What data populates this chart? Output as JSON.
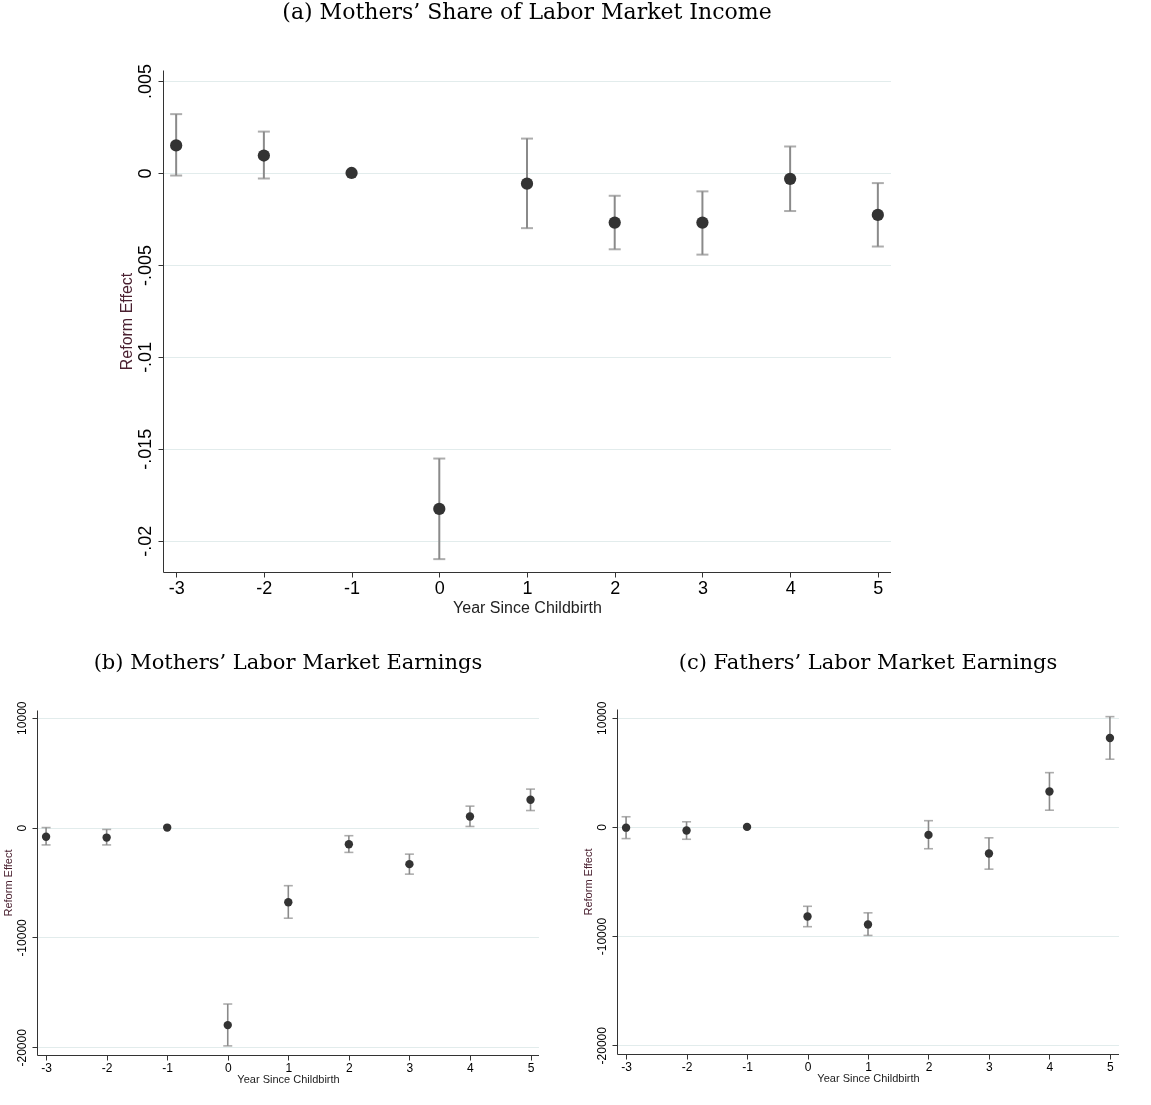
{
  "chart_data": [
    {
      "type": "scatter",
      "title": "(a) Mothers’ Share of Labor Market Income",
      "xlabel": "Year Since Childbirth",
      "ylabel": "Reform Effect",
      "x": [
        -3,
        -2,
        -1,
        0,
        1,
        2,
        3,
        4,
        5
      ],
      "xlim": [
        -3.15,
        5.15
      ],
      "xticks": [
        -3,
        -2,
        -1,
        0,
        1,
        2,
        3,
        4,
        5
      ],
      "ylim": [
        -0.0217,
        0.0056
      ],
      "yticks": [
        {
          "value": -0.02,
          "label": "-.02"
        },
        {
          "value": -0.015,
          "label": "-.015"
        },
        {
          "value": -0.01,
          "label": "-.01"
        },
        {
          "value": -0.005,
          "label": "-.005"
        },
        0,
        {
          "value": 0.005,
          "label": ".005"
        }
      ],
      "grid": "y",
      "marker": "circle",
      "series": [
        {
          "color": "#333333",
          "values": [
            0.0015,
            0.00095,
            0,
            -0.01827,
            -0.00058,
            -0.0027,
            -0.0027,
            -0.00032,
            -0.00228
          ],
          "errors": [
            [
              -0.00014,
              0.0032
            ],
            [
              -0.0003,
              0.00225
            ],
            null,
            [
              -0.021,
              -0.01553
            ],
            [
              -0.003,
              0.00187
            ],
            [
              -0.00415,
              -0.00124
            ],
            [
              -0.00444,
              -0.001
            ],
            [
              -0.00207,
              0.00144
            ],
            [
              -0.004,
              -0.00055
            ]
          ]
        }
      ]
    },
    {
      "type": "scatter",
      "title": "(b) Mothers’ Labor Market Earnings",
      "xlabel": "Year Since Childbirth",
      "ylabel": "Reform Effect",
      "x": [
        -3,
        -2,
        -1,
        0,
        1,
        2,
        3,
        4,
        5
      ],
      "xlim": [
        -3.15,
        5.14
      ],
      "xticks": [
        -3,
        -2,
        -1,
        0,
        1,
        2,
        3,
        4,
        5
      ],
      "ylim": [
        -20700,
        10700
      ],
      "yticks": [
        -20000,
        -10000,
        0,
        10000
      ],
      "grid": "y",
      "marker": "circle",
      "series": [
        {
          "color": "#333333",
          "values": [
            -840,
            -910,
            0,
            -17980,
            -6800,
            -1520,
            -3330,
            1010,
            2530
          ],
          "errors": [
            [
              -1580,
              0
            ],
            [
              -1580,
              -170
            ],
            null,
            [
              -19870,
              -16060
            ],
            [
              -8250,
              -5290
            ],
            [
              -2260,
              -740
            ],
            [
              -4240,
              -2420
            ],
            [
              100,
              1950
            ],
            [
              1550,
              3500
            ]
          ]
        }
      ]
    },
    {
      "type": "scatter",
      "title": "(c) Fathers’ Labor Market Earnings",
      "xlabel": "Year Since Childbirth",
      "ylabel": "Reform Effect",
      "x": [
        -3,
        -2,
        -1,
        0,
        1,
        2,
        3,
        4,
        5
      ],
      "xlim": [
        -3.15,
        5.15
      ],
      "xticks": [
        -3,
        -2,
        -1,
        0,
        1,
        2,
        3,
        4,
        5
      ],
      "ylim": [
        -20800,
        10800
      ],
      "yticks": [
        -20000,
        -10000,
        0,
        10000
      ],
      "grid": "y",
      "marker": "circle",
      "series": [
        {
          "color": "#333333",
          "values": [
            -70,
            -330,
            0,
            -8210,
            -8940,
            -730,
            -2440,
            3240,
            8140
          ],
          "errors": [
            [
              -1070,
              930
            ],
            [
              -1130,
              470
            ],
            null,
            [
              -9140,
              -7270
            ],
            [
              -9940,
              -7870
            ],
            [
              -2000,
              570
            ],
            [
              -3870,
              -1000
            ],
            [
              1530,
              4970
            ],
            [
              6200,
              10100
            ]
          ]
        }
      ]
    }
  ]
}
